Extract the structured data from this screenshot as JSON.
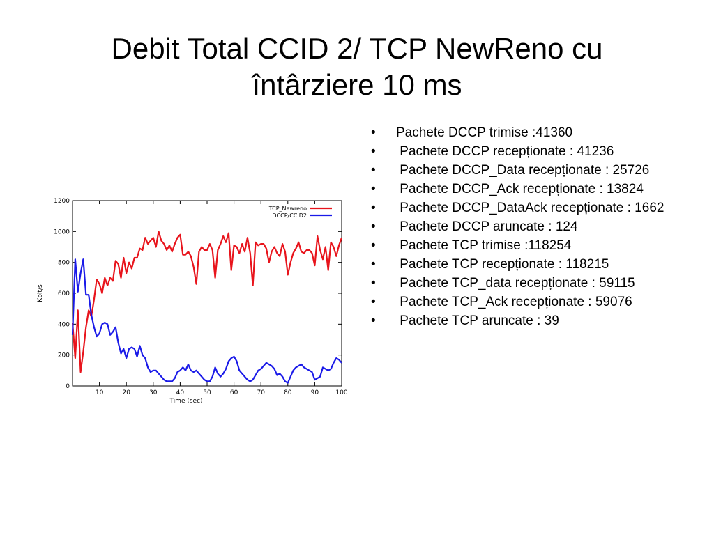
{
  "slide": {
    "title_line1": "Debit Total CCID 2/ TCP NewReno cu",
    "title_line2": "întârziere 10 ms"
  },
  "bullets": [
    "Pachete DCCP trimise :41360",
    " Pachete DCCP recepționate : 41236",
    " Pachete DCCP_Data recepționate : 25726",
    " Pachete DCCP_Ack recepționate : 13824",
    " Pachete DCCP_DataAck recepționate : 1662",
    " Pachete DCCP aruncate : 124",
    " Pachete TCP trimise :118254",
    " Pachete TCP recepționate : 118215",
    " Pachete TCP_data recepționate : 59115",
    " Pachete TCP_Ack recepționate : 59076",
    " Pachete TCP aruncate : 39"
  ],
  "chart_data": {
    "type": "line",
    "title": "",
    "xlabel": "Time (sec)",
    "ylabel": "Kbit/s",
    "xlim": [
      0,
      100
    ],
    "ylim": [
      0,
      1200
    ],
    "xticks": [
      10,
      20,
      30,
      40,
      50,
      60,
      70,
      80,
      90,
      100
    ],
    "yticks": [
      0,
      200,
      400,
      600,
      800,
      1000,
      1200
    ],
    "grid": false,
    "legend_position": "top-right",
    "x": [
      0,
      1,
      2,
      3,
      4,
      5,
      6,
      7,
      8,
      9,
      10,
      11,
      12,
      13,
      14,
      15,
      16,
      17,
      18,
      19,
      20,
      21,
      22,
      23,
      24,
      25,
      26,
      27,
      28,
      29,
      30,
      31,
      32,
      33,
      34,
      35,
      36,
      37,
      38,
      39,
      40,
      41,
      42,
      43,
      44,
      45,
      46,
      47,
      48,
      49,
      50,
      51,
      52,
      53,
      54,
      55,
      56,
      57,
      58,
      59,
      60,
      61,
      62,
      63,
      64,
      65,
      66,
      67,
      68,
      69,
      70,
      71,
      72,
      73,
      74,
      75,
      76,
      77,
      78,
      79,
      80,
      81,
      82,
      83,
      84,
      85,
      86,
      87,
      88,
      89,
      90,
      91,
      92,
      93,
      94,
      95,
      96,
      97,
      98,
      99,
      100
    ],
    "series": [
      {
        "name": "TCP_Newreno",
        "color": "#e8141c",
        "values": [
          410,
          180,
          490,
          90,
          220,
          380,
          490,
          450,
          560,
          690,
          660,
          600,
          700,
          650,
          700,
          680,
          810,
          790,
          700,
          830,
          730,
          800,
          760,
          830,
          830,
          890,
          880,
          960,
          920,
          940,
          960,
          900,
          1000,
          940,
          920,
          880,
          910,
          870,
          920,
          960,
          980,
          850,
          850,
          870,
          840,
          770,
          660,
          870,
          900,
          880,
          880,
          920,
          880,
          700,
          880,
          920,
          970,
          930,
          990,
          750,
          910,
          900,
          860,
          920,
          870,
          960,
          860,
          650,
          930,
          910,
          920,
          920,
          890,
          800,
          870,
          900,
          860,
          840,
          920,
          870,
          720,
          800,
          860,
          890,
          930,
          870,
          860,
          880,
          880,
          860,
          780,
          970,
          880,
          820,
          900,
          750,
          930,
          900,
          840,
          910,
          960
        ]
      },
      {
        "name": "DCCP/CCID2",
        "color": "#1a1ae8",
        "values": [
          330,
          820,
          610,
          730,
          820,
          590,
          590,
          460,
          380,
          320,
          340,
          400,
          410,
          400,
          330,
          350,
          380,
          280,
          210,
          240,
          180,
          240,
          250,
          240,
          190,
          260,
          200,
          180,
          120,
          90,
          100,
          100,
          80,
          60,
          40,
          30,
          30,
          30,
          50,
          90,
          100,
          120,
          100,
          140,
          100,
          90,
          100,
          80,
          60,
          40,
          30,
          30,
          60,
          120,
          80,
          60,
          80,
          110,
          160,
          180,
          190,
          160,
          100,
          80,
          60,
          40,
          30,
          40,
          70,
          100,
          110,
          130,
          150,
          140,
          130,
          110,
          70,
          80,
          60,
          30,
          20,
          60,
          100,
          120,
          130,
          140,
          120,
          110,
          100,
          90,
          40,
          50,
          60,
          120,
          110,
          100,
          110,
          150,
          180,
          170,
          150
        ]
      }
    ]
  }
}
